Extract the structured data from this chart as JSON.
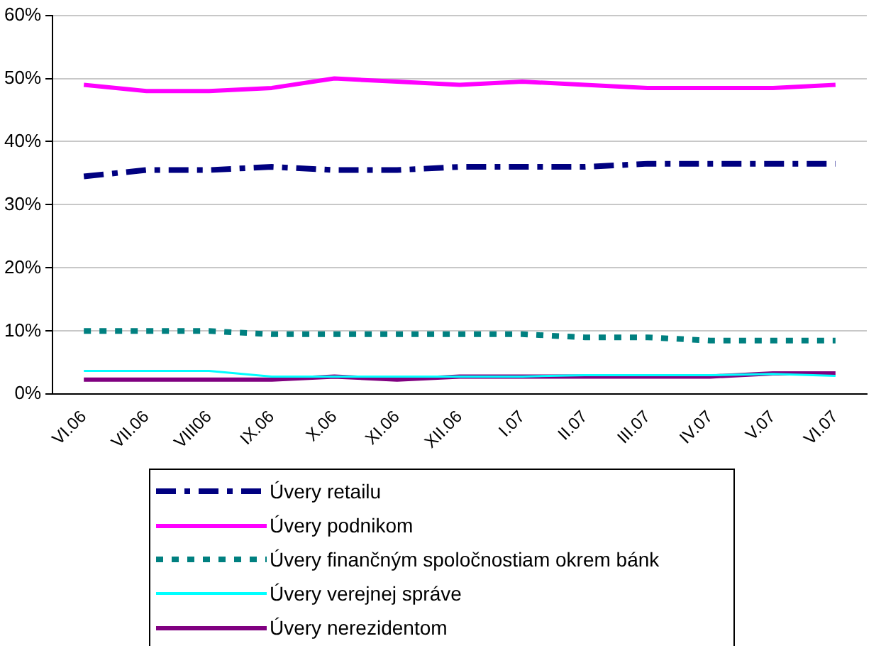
{
  "chart_data": {
    "type": "line",
    "categories": [
      "VI.06",
      "VII.06",
      "VIII06",
      "IX.06",
      "X.06",
      "XI.06",
      "XII.06",
      "I.07",
      "II.07",
      "III.07",
      "IV.07",
      "V.07",
      "VI.07"
    ],
    "series": [
      {
        "name": "Úvery retailu",
        "color": "#000080",
        "line_style": "dashed",
        "values": [
          34.5,
          35.5,
          35.5,
          36,
          35.5,
          35.5,
          36,
          36,
          36,
          36.5,
          36.5,
          36.5,
          36.5
        ]
      },
      {
        "name": "Úvery podnikom",
        "color": "#ff00ff",
        "line_style": "solid",
        "values": [
          49,
          48,
          48,
          48.5,
          50,
          49.5,
          49,
          49.5,
          49,
          48.5,
          48.5,
          48.5,
          49
        ]
      },
      {
        "name": "Úvery finančným spoločnostiam okrem bánk",
        "color": "#008080",
        "line_style": "dotted",
        "values": [
          10,
          10,
          10,
          9.5,
          9.5,
          9.5,
          9.5,
          9.5,
          9,
          9,
          8.5,
          8.5,
          8.5
        ]
      },
      {
        "name": "Úvery verejnej správe",
        "color": "#00ffff",
        "line_style": "solid",
        "values": [
          3.7,
          3.7,
          3.7,
          2.8,
          2.8,
          2.8,
          2.8,
          2.8,
          3,
          3,
          3,
          3.2,
          2.9
        ]
      },
      {
        "name": "Úvery nerezidentom",
        "color": "#800080",
        "line_style": "solid",
        "values": [
          2.3,
          2.3,
          2.3,
          2.3,
          2.8,
          2.3,
          2.8,
          2.8,
          2.8,
          2.8,
          2.8,
          3.3,
          3.3
        ]
      }
    ],
    "ylim": [
      0,
      60
    ],
    "yticks": [
      {
        "value": 0,
        "label": "0%"
      },
      {
        "value": 10,
        "label": "10%"
      },
      {
        "value": 20,
        "label": "20%"
      },
      {
        "value": 30,
        "label": "30%"
      },
      {
        "value": 40,
        "label": "40%"
      },
      {
        "value": 50,
        "label": "50%"
      },
      {
        "value": 60,
        "label": "60%"
      }
    ],
    "grid": "y",
    "legend": "bottom",
    "marker": "none"
  }
}
